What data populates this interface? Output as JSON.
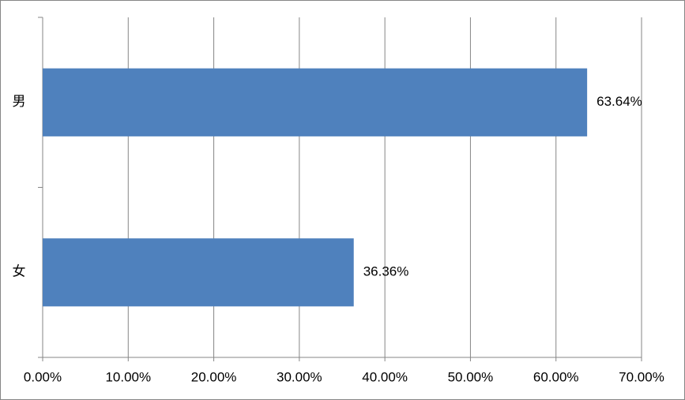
{
  "chart_data": {
    "type": "bar",
    "orientation": "horizontal",
    "categories": [
      "男",
      "女"
    ],
    "values": [
      63.64,
      36.36
    ],
    "value_labels": [
      "63.64%",
      "36.36%"
    ],
    "color": "#4f81bd",
    "xlim": [
      0,
      70
    ],
    "xticks": [
      {
        "value": 0,
        "label": "0.00%"
      },
      {
        "value": 10,
        "label": "10.00%"
      },
      {
        "value": 20,
        "label": "20.00%"
      },
      {
        "value": 30,
        "label": "30.00%"
      },
      {
        "value": 40,
        "label": "40.00%"
      },
      {
        "value": 50,
        "label": "50.00%"
      },
      {
        "value": 60,
        "label": "60.00%"
      },
      {
        "value": 70,
        "label": "70.00%"
      }
    ],
    "grid": true
  }
}
